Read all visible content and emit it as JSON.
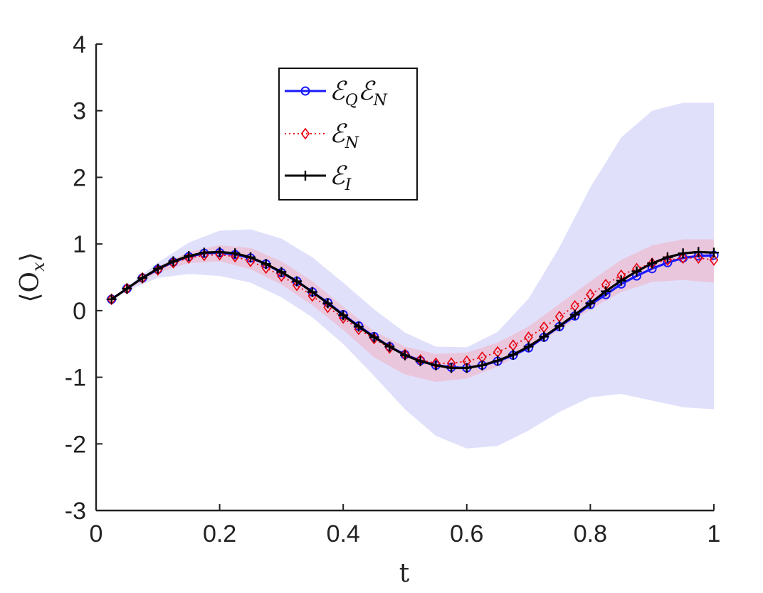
{
  "chart_data": {
    "type": "line",
    "title": "",
    "xlabel": "t",
    "ylabel": "⟨O",
    "ylabel_sub": "x",
    "ylabel_close": "⟩",
    "xlim": [
      0,
      1
    ],
    "ylim": [
      -3,
      4
    ],
    "xticks": [
      0,
      0.2,
      0.4,
      0.6,
      0.8,
      1
    ],
    "xtick_labels": [
      "0",
      "0.2",
      "0.4",
      "0.6",
      "0.8",
      "1"
    ],
    "yticks": [
      -3,
      -2,
      -1,
      0,
      1,
      2,
      3,
      4
    ],
    "ytick_labels": [
      "-3",
      "-2",
      "-1",
      "0",
      "1",
      "2",
      "3",
      "4"
    ],
    "grid": false,
    "legend_position": "top-left",
    "x": [
      0.025,
      0.05,
      0.075,
      0.1,
      0.125,
      0.15,
      0.175,
      0.2,
      0.225,
      0.25,
      0.275,
      0.3,
      0.325,
      0.35,
      0.375,
      0.4,
      0.425,
      0.45,
      0.475,
      0.5,
      0.525,
      0.55,
      0.575,
      0.6,
      0.625,
      0.65,
      0.675,
      0.7,
      0.725,
      0.75,
      0.775,
      0.8,
      0.825,
      0.85,
      0.875,
      0.9,
      0.925,
      0.95,
      0.975,
      1.0
    ],
    "series": [
      {
        "name": "E_Q E_N",
        "legend_main": "ℰ",
        "legend_sub": "Q",
        "legend_main2": "ℰ",
        "legend_sub2": "N",
        "color": "#1a1aff",
        "marker": "circle",
        "linestyle": "solid",
        "values": [
          0.17,
          0.33,
          0.49,
          0.62,
          0.73,
          0.81,
          0.86,
          0.87,
          0.84,
          0.79,
          0.7,
          0.57,
          0.44,
          0.28,
          0.12,
          -0.06,
          -0.23,
          -0.39,
          -0.54,
          -0.66,
          -0.75,
          -0.82,
          -0.85,
          -0.86,
          -0.82,
          -0.76,
          -0.67,
          -0.56,
          -0.4,
          -0.24,
          -0.08,
          0.09,
          0.24,
          0.4,
          0.52,
          0.63,
          0.72,
          0.79,
          0.82,
          0.83
        ]
      },
      {
        "name": "E_N",
        "legend_main": "ℰ",
        "legend_sub": "N",
        "color": "#e8000b",
        "marker": "diamond",
        "linestyle": "dotted",
        "values": [
          0.17,
          0.33,
          0.49,
          0.61,
          0.72,
          0.79,
          0.83,
          0.84,
          0.81,
          0.74,
          0.64,
          0.52,
          0.38,
          0.22,
          0.05,
          -0.11,
          -0.28,
          -0.42,
          -0.56,
          -0.66,
          -0.74,
          -0.79,
          -0.79,
          -0.76,
          -0.7,
          -0.62,
          -0.52,
          -0.4,
          -0.25,
          -0.09,
          0.07,
          0.24,
          0.39,
          0.53,
          0.63,
          0.71,
          0.76,
          0.79,
          0.79,
          0.76
        ]
      },
      {
        "name": "E_I",
        "legend_main": "ℰ",
        "legend_sub": "I",
        "color": "#000000",
        "marker": "plus",
        "linestyle": "solid",
        "values": [
          0.17,
          0.33,
          0.49,
          0.63,
          0.74,
          0.82,
          0.87,
          0.88,
          0.86,
          0.8,
          0.7,
          0.58,
          0.44,
          0.28,
          0.11,
          -0.07,
          -0.24,
          -0.4,
          -0.54,
          -0.67,
          -0.76,
          -0.82,
          -0.86,
          -0.86,
          -0.82,
          -0.75,
          -0.66,
          -0.54,
          -0.39,
          -0.23,
          -0.06,
          0.11,
          0.29,
          0.45,
          0.59,
          0.71,
          0.8,
          0.86,
          0.88,
          0.87
        ]
      }
    ],
    "bands": [
      {
        "name": "E_Q E_N spread",
        "color": "#c7c7f7",
        "x": [
          0.025,
          0.05,
          0.1,
          0.15,
          0.2,
          0.25,
          0.3,
          0.35,
          0.4,
          0.45,
          0.5,
          0.55,
          0.6,
          0.65,
          0.7,
          0.75,
          0.8,
          0.85,
          0.9,
          0.95,
          1.0
        ],
        "upper": [
          0.18,
          0.36,
          0.72,
          1.02,
          1.2,
          1.22,
          1.08,
          0.8,
          0.42,
          0.02,
          -0.33,
          -0.54,
          -0.55,
          -0.32,
          0.18,
          0.95,
          1.85,
          2.6,
          3.0,
          3.12,
          3.12
        ],
        "lower": [
          0.16,
          0.3,
          0.49,
          0.55,
          0.52,
          0.42,
          0.2,
          -0.1,
          -0.5,
          -0.98,
          -1.48,
          -1.88,
          -2.07,
          -2.03,
          -1.8,
          -1.52,
          -1.3,
          -1.25,
          -1.35,
          -1.45,
          -1.48
        ]
      },
      {
        "name": "E_N spread",
        "color": "#f0b4c8",
        "x": [
          0.025,
          0.05,
          0.1,
          0.15,
          0.2,
          0.25,
          0.3,
          0.35,
          0.4,
          0.45,
          0.5,
          0.55,
          0.6,
          0.65,
          0.7,
          0.75,
          0.8,
          0.85,
          0.9,
          0.95,
          1.0
        ],
        "upper": [
          0.18,
          0.35,
          0.66,
          0.88,
          0.98,
          0.94,
          0.74,
          0.44,
          0.06,
          -0.31,
          -0.54,
          -0.65,
          -0.63,
          -0.48,
          -0.24,
          0.1,
          0.44,
          0.76,
          0.98,
          1.07,
          1.07
        ],
        "lower": [
          0.16,
          0.31,
          0.57,
          0.71,
          0.74,
          0.62,
          0.39,
          0.08,
          -0.29,
          -0.7,
          -0.96,
          -1.07,
          -1.02,
          -0.84,
          -0.58,
          -0.29,
          0.02,
          0.28,
          0.43,
          0.46,
          0.42
        ]
      }
    ]
  }
}
